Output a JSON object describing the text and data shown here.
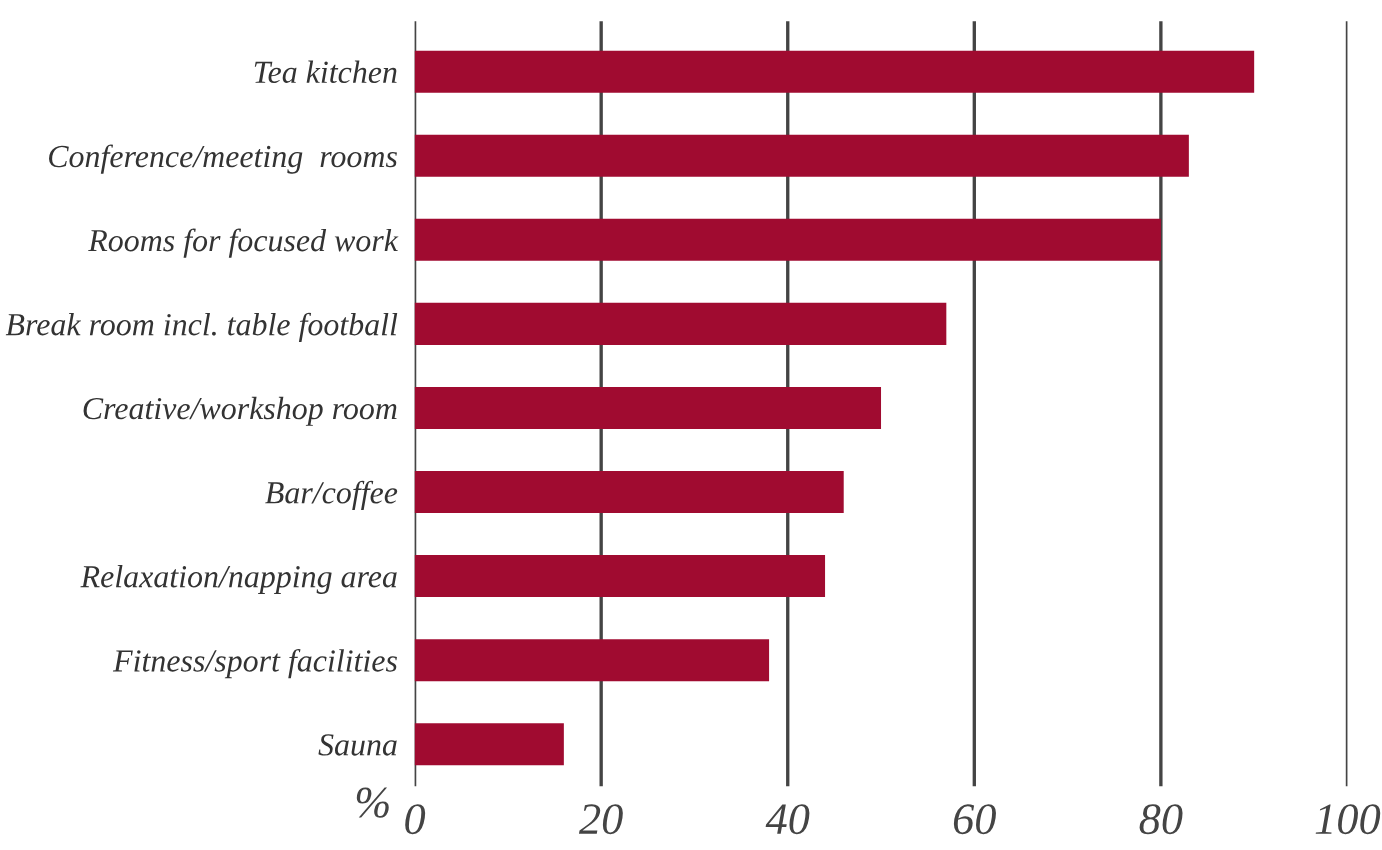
{
  "chart_data": {
    "type": "bar",
    "orientation": "horizontal",
    "categories": [
      "Tea kitchen",
      "Conference/meeting  rooms",
      "Rooms for focused work",
      "Break room incl. table football",
      "Creative/workshop room",
      "Bar/coffee",
      "Relaxation/napping area",
      "Fitness/sport facilities",
      "Sauna"
    ],
    "values": [
      90,
      83,
      80,
      57,
      50,
      46,
      44,
      38,
      16
    ],
    "color": "#a00b30",
    "xlabel": "%",
    "xlim": [
      0,
      100
    ],
    "xticks": [
      0,
      20,
      40,
      60,
      80,
      100
    ],
    "grid": "x"
  }
}
